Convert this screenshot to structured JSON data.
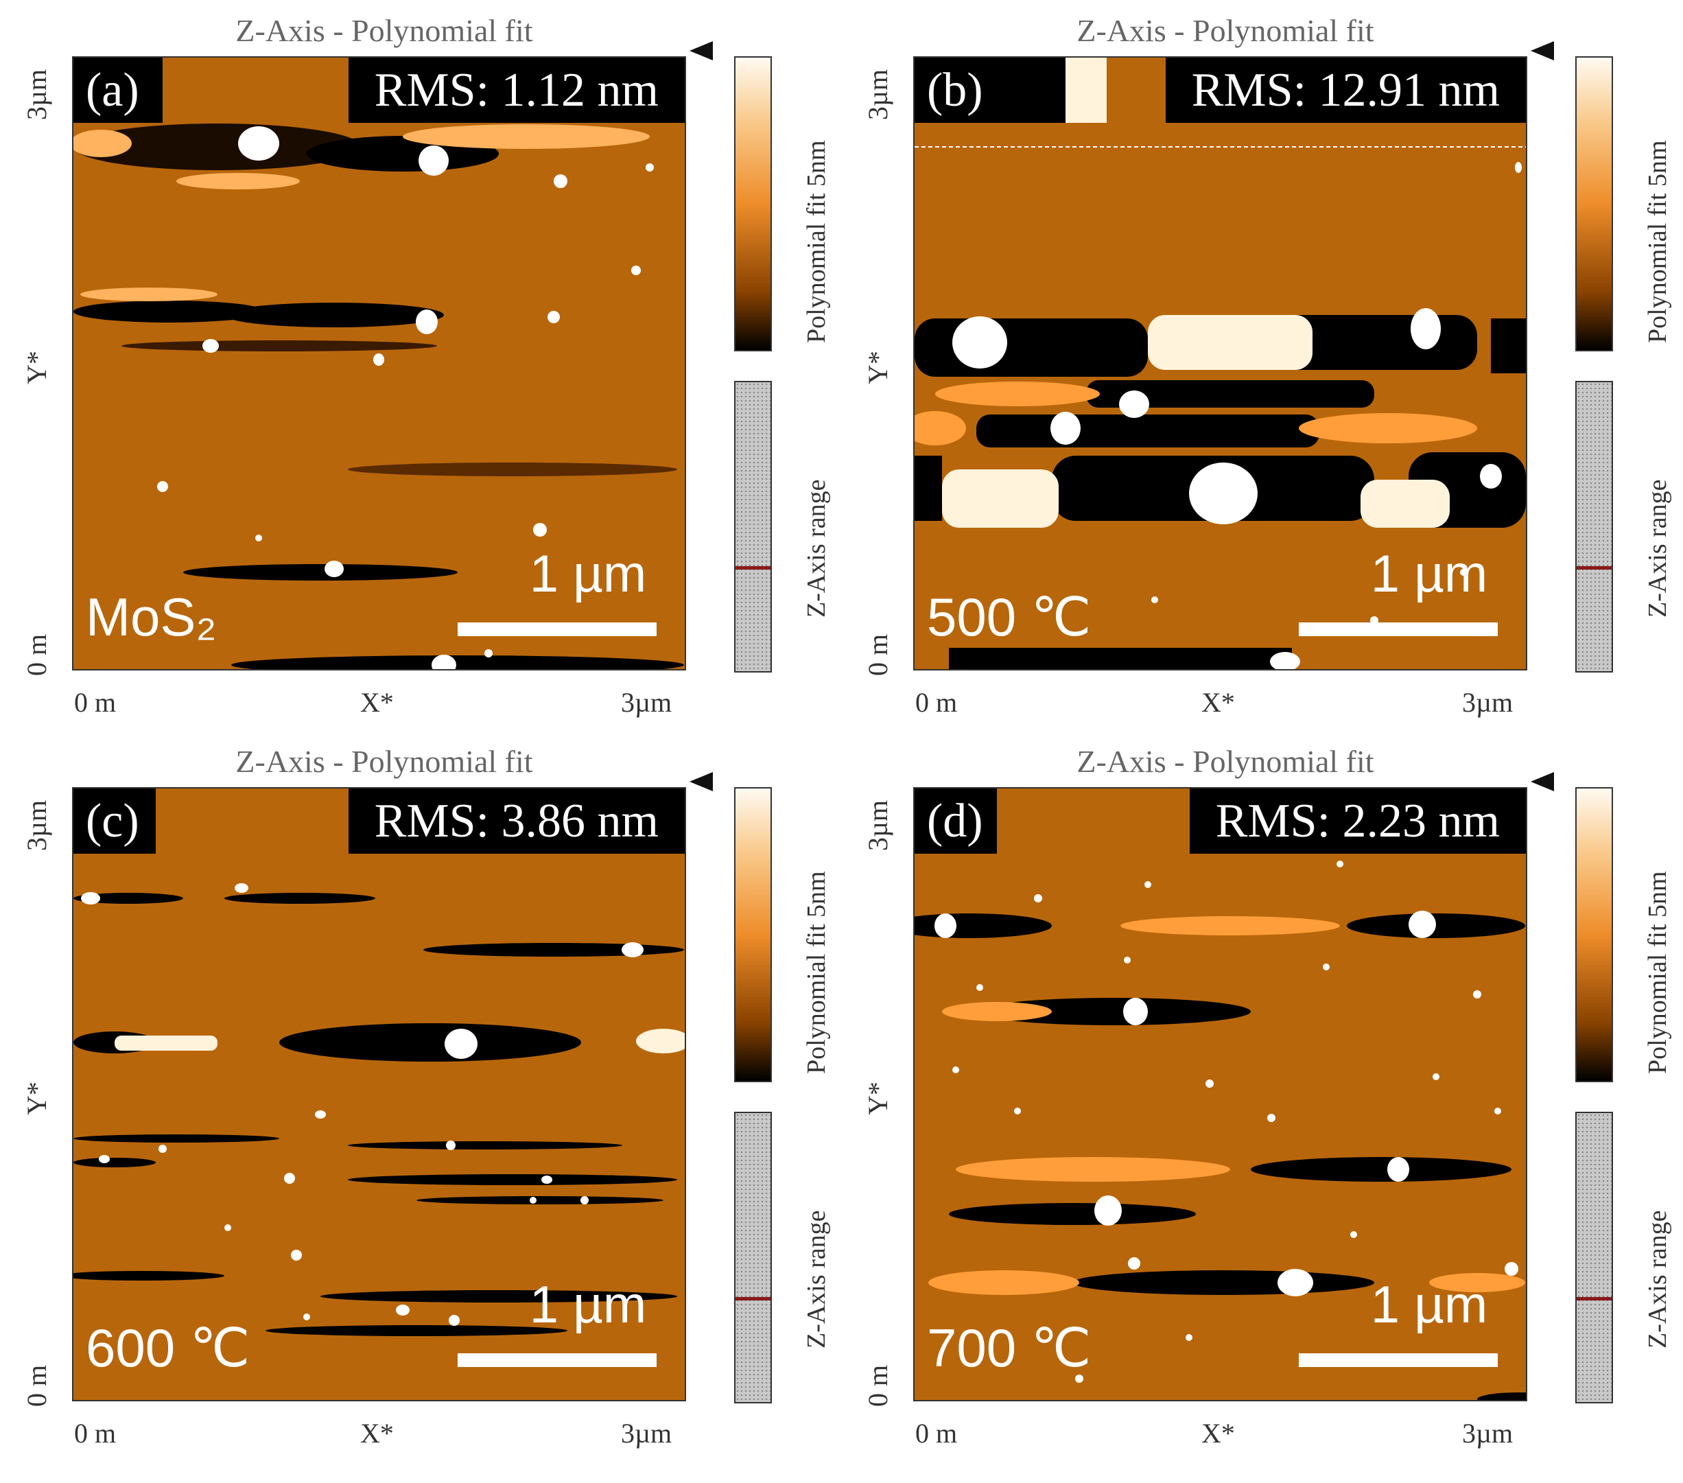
{
  "panels": [
    {
      "title": "Z-Axis - Polynomial fit",
      "panel_label": "(a)",
      "rms": "RMS: 1.12 nm",
      "sample": "MoS₂",
      "scale_bar": "1 µm",
      "y_axis": {
        "top": "3µm",
        "mid": "Y*",
        "bottom": "0 m"
      },
      "x_axis": {
        "left": "0 m",
        "mid": "X*",
        "right": "3µm"
      },
      "colorbar_label": "Polynomial fit 5nm",
      "range_label": "Z-Axis range"
    },
    {
      "title": "Z-Axis - Polynomial fit",
      "panel_label": "(b)",
      "rms": "RMS: 12.91 nm",
      "sample": "500 ℃",
      "scale_bar": "1 µm",
      "y_axis": {
        "top": "3µm",
        "mid": "Y*",
        "bottom": "0 m"
      },
      "x_axis": {
        "left": "0 m",
        "mid": "X*",
        "right": "3µm"
      },
      "colorbar_label": "Polynomial fit 5nm",
      "range_label": "Z-Axis range"
    },
    {
      "title": "Z-Axis - Polynomial fit",
      "panel_label": "(c)",
      "rms": "RMS: 3.86 nm",
      "sample": "600 ℃",
      "scale_bar": "1 µm",
      "y_axis": {
        "top": "3µm",
        "mid": "Y*",
        "bottom": "0 m"
      },
      "x_axis": {
        "left": "0 m",
        "mid": "X*",
        "right": "3µm"
      },
      "colorbar_label": "Polynomial fit 5nm",
      "range_label": "Z-Axis range"
    },
    {
      "title": "Z-Axis - Polynomial fit",
      "panel_label": "(d)",
      "rms": "RMS: 2.23 nm",
      "sample": "700 ℃",
      "scale_bar": "1 µm",
      "y_axis": {
        "top": "3µm",
        "mid": "Y*",
        "bottom": "0 m"
      },
      "x_axis": {
        "left": "0 m",
        "mid": "X*",
        "right": "3µm"
      },
      "colorbar_label": "Polynomial fit 5nm",
      "range_label": "Z-Axis range"
    }
  ],
  "colors": {
    "afm_base": "#b8660b",
    "afm_dark": "#000000",
    "afm_bright": "#fff3dc",
    "range_marker": "#8b1a1a"
  }
}
